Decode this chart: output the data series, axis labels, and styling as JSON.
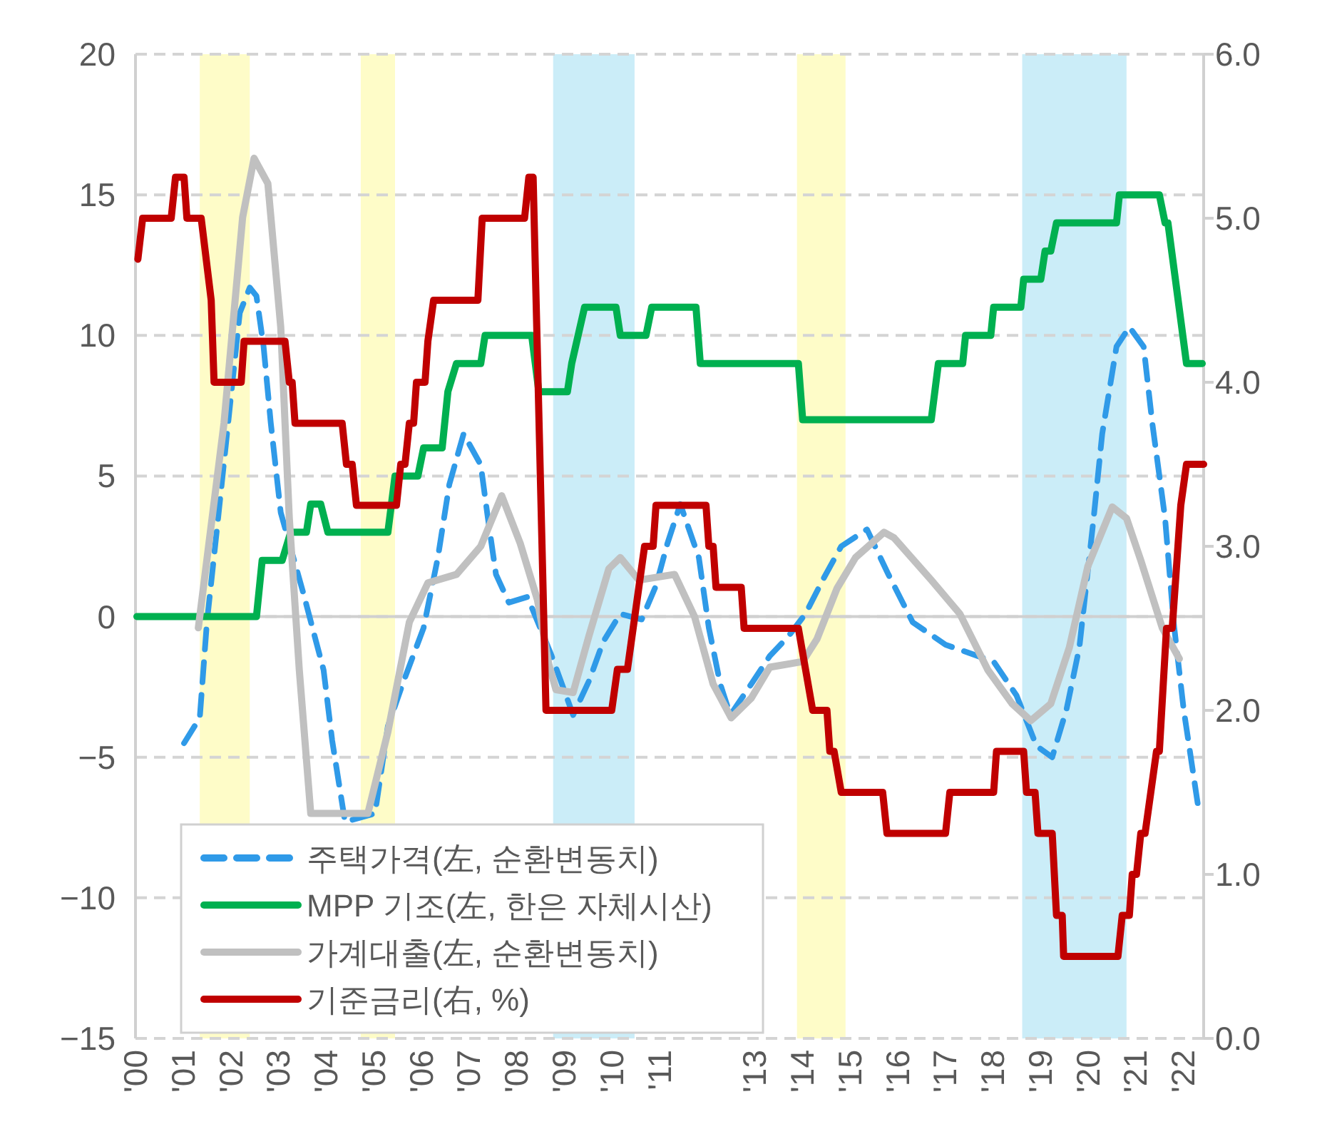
{
  "chart_data": {
    "type": "line",
    "xlim": [
      2000,
      2022.43
    ],
    "xticks": [
      {
        "value": 2000,
        "label": "'00"
      },
      {
        "value": 2001,
        "label": "'01"
      },
      {
        "value": 2002,
        "label": "'02"
      },
      {
        "value": 2003,
        "label": "'03"
      },
      {
        "value": 2004,
        "label": "'04"
      },
      {
        "value": 2005,
        "label": "'05"
      },
      {
        "value": 2006,
        "label": "'06"
      },
      {
        "value": 2007,
        "label": "'07"
      },
      {
        "value": 2008,
        "label": "'08"
      },
      {
        "value": 2009,
        "label": "'09"
      },
      {
        "value": 2010,
        "label": "'10"
      },
      {
        "value": 2011,
        "label": "'11"
      },
      {
        "value": 2013,
        "label": "'13"
      },
      {
        "value": 2014,
        "label": "'14"
      },
      {
        "value": 2015,
        "label": "'15"
      },
      {
        "value": 2016,
        "label": "'16"
      },
      {
        "value": 2017,
        "label": "'17"
      },
      {
        "value": 2018,
        "label": "'18"
      },
      {
        "value": 2019,
        "label": "'19"
      },
      {
        "value": 2020,
        "label": "'20"
      },
      {
        "value": 2021,
        "label": "'21"
      },
      {
        "value": 2022,
        "label": "'22"
      }
    ],
    "ylim": [
      -15,
      20
    ],
    "yticks": [
      {
        "value": -15,
        "label": "−15"
      },
      {
        "value": -10,
        "label": "−10"
      },
      {
        "value": -5,
        "label": "−5"
      },
      0,
      5,
      10,
      15,
      20
    ],
    "y2lim": [
      0,
      6
    ],
    "y2ticks": [
      {
        "value": 0,
        "label": "0.0"
      },
      {
        "value": 1,
        "label": "1.0"
      },
      {
        "value": 2,
        "label": "2.0"
      },
      {
        "value": 3,
        "label": "3.0"
      },
      {
        "value": 4,
        "label": "4.0"
      },
      {
        "value": 5,
        "label": "5.0"
      },
      {
        "value": 6,
        "label": "6.0"
      }
    ],
    "grid": "y",
    "legend": "bottom left",
    "bands": [
      {
        "axis": "x",
        "from": 2001.35,
        "to": 2002.4,
        "color": "#fefcc8"
      },
      {
        "axis": "x",
        "from": 2004.73,
        "to": 2005.45,
        "color": "#fefcc8"
      },
      {
        "axis": "x",
        "from": 2008.77,
        "to": 2010.48,
        "color": "#cbedf8"
      },
      {
        "axis": "x",
        "from": 2013.89,
        "to": 2014.91,
        "color": "#fefcc8"
      },
      {
        "axis": "x",
        "from": 2018.62,
        "to": 2020.81,
        "color": "#cbedf8"
      }
    ],
    "series": [
      {
        "name": "주택가격(左, 순환변동치)",
        "color": "#2f9ae8",
        "line_style": "dashed",
        "x": [
          2001.02,
          2001.35,
          2001.5,
          2001.71,
          2002.19,
          2002.4,
          2002.54,
          2002.69,
          2002.84,
          2003.05,
          2003.53,
          2003.95,
          2004.13,
          2004.4,
          2005.03,
          2005.3,
          2005.63,
          2006.05,
          2006.35,
          2006.59,
          2006.89,
          2007.25,
          2007.4,
          2007.57,
          2007.84,
          2008.23,
          2008.62,
          2008.74,
          2009.19,
          2009.52,
          2009.82,
          2010.18,
          2010.63,
          2010.93,
          2011.17,
          2011.44,
          2011.83,
          2012.04,
          2012.28,
          2012.49,
          2012.93,
          2013.32,
          2013.71,
          2014.07,
          2014.43,
          2014.82,
          2015.36,
          2015.81,
          2016.32,
          2017.01,
          2018.02,
          2018.5,
          2018.92,
          2019.25,
          2019.55,
          2019.82,
          2020.12,
          2020.3,
          2020.6,
          2020.87,
          2021.17,
          2021.35,
          2021.62,
          2021.8,
          2022.01,
          2022.31
        ],
        "values": [
          -4.5,
          -3.6,
          -0.2,
          3.1,
          10.8,
          11.7,
          11.4,
          9.6,
          6.9,
          3.7,
          0.8,
          -1.9,
          -4.4,
          -7.3,
          -7.0,
          -3.9,
          -2.3,
          -0.4,
          2.1,
          4.7,
          6.5,
          5.4,
          3.5,
          1.5,
          0.5,
          0.7,
          -0.9,
          -1.4,
          -3.5,
          -2.3,
          -0.9,
          0.1,
          -0.1,
          1.1,
          2.6,
          4.0,
          2.1,
          -0.4,
          -2.4,
          -3.5,
          -2.4,
          -1.4,
          -0.7,
          0.1,
          1.3,
          2.5,
          3.1,
          1.5,
          -0.2,
          -1.0,
          -1.6,
          -2.8,
          -4.6,
          -5.0,
          -3.3,
          -1.1,
          3.5,
          6.5,
          9.6,
          10.3,
          9.6,
          6.9,
          3.5,
          -0.2,
          -3.3,
          -6.7
        ]
      },
      {
        "name": "MPP 기조(左, 한은 자체시산)",
        "color": "#00b050",
        "line_style": "solid",
        "x": [
          2000.03,
          2002.54,
          2002.66,
          2003.08,
          2003.26,
          2003.59,
          2003.68,
          2003.89,
          2004.04,
          2005.3,
          2005.45,
          2005.93,
          2006.05,
          2006.44,
          2006.56,
          2006.74,
          2007.25,
          2007.34,
          2008.32,
          2008.47,
          2009.07,
          2009.16,
          2009.43,
          2010.09,
          2010.18,
          2010.72,
          2010.84,
          2011.77,
          2011.86,
          2013.92,
          2014.01,
          2016.71,
          2016.86,
          2017.37,
          2017.43,
          2017.96,
          2018.02,
          2018.59,
          2018.65,
          2019.01,
          2019.1,
          2019.22,
          2019.34,
          2020.6,
          2020.66,
          2021.5,
          2021.62,
          2021.68,
          2022.07,
          2022.4
        ],
        "values": [
          0,
          0,
          2,
          2,
          3,
          3,
          4,
          4,
          3,
          3,
          5,
          5,
          6,
          6,
          8,
          9,
          9,
          10,
          10,
          8,
          8,
          9,
          11,
          11,
          10,
          10,
          11,
          11,
          9,
          9,
          7,
          7,
          9,
          9,
          10,
          10,
          11,
          11,
          12,
          12,
          13,
          13,
          14,
          14,
          15,
          15,
          14,
          14,
          9,
          9
        ]
      },
      {
        "name": "가계대출(左, 순환변동치)",
        "color": "#c0c0c0",
        "line_style": "solid",
        "x": [
          2001.32,
          2001.86,
          2002.25,
          2002.49,
          2002.78,
          2003.05,
          2003.23,
          2003.44,
          2003.68,
          2004.88,
          2005.3,
          2005.75,
          2006.14,
          2006.74,
          2007.25,
          2007.69,
          2008.08,
          2008.44,
          2008.68,
          2008.83,
          2009.19,
          2009.52,
          2009.94,
          2010.18,
          2010.57,
          2011.32,
          2011.74,
          2012.13,
          2012.51,
          2012.93,
          2013.32,
          2014.01,
          2014.31,
          2014.73,
          2015.12,
          2015.72,
          2015.93,
          2016.71,
          2017.31,
          2017.9,
          2018.41,
          2018.8,
          2019.22,
          2019.61,
          2020.0,
          2020.51,
          2020.81,
          2021.11,
          2021.56,
          2021.92
        ],
        "values": [
          -0.4,
          6.9,
          14.2,
          16.3,
          15.4,
          10.3,
          3.5,
          -1.9,
          -7.0,
          -7.0,
          -4.1,
          -0.2,
          1.2,
          1.5,
          2.5,
          4.3,
          2.6,
          0.6,
          -1.7,
          -2.6,
          -2.7,
          -0.7,
          1.7,
          2.1,
          1.3,
          1.5,
          0.0,
          -2.4,
          -3.6,
          -2.9,
          -1.8,
          -1.6,
          -0.8,
          1.0,
          2.1,
          3.0,
          2.8,
          1.3,
          0.1,
          -1.9,
          -3.1,
          -3.7,
          -3.1,
          -1.1,
          1.8,
          3.9,
          3.5,
          2.0,
          -0.4,
          -1.5
        ]
      },
      {
        "name": "기준금리(右, %)",
        "color": "#c00000",
        "line_style": "solid",
        "axis": "y2",
        "x": [
          2000.05,
          2000.15,
          2000.75,
          2000.84,
          2001.02,
          2001.08,
          2001.38,
          2001.59,
          2001.65,
          2002.22,
          2002.28,
          2003.14,
          2003.23,
          2003.29,
          2003.35,
          2004.34,
          2004.43,
          2004.55,
          2004.64,
          2005.48,
          2005.57,
          2005.66,
          2005.75,
          2005.84,
          2005.9,
          2006.08,
          2006.14,
          2006.26,
          2007.19,
          2007.28,
          2008.17,
          2008.26,
          2008.35,
          2008.62,
          2010.0,
          2010.12,
          2010.33,
          2010.45,
          2010.57,
          2010.69,
          2010.87,
          2010.93,
          2011.98,
          2012.04,
          2012.13,
          2012.19,
          2012.72,
          2012.78,
          2013.92,
          2014.07,
          2014.22,
          2014.52,
          2014.58,
          2014.67,
          2014.82,
          2015.69,
          2015.78,
          2017.01,
          2017.1,
          2018.02,
          2018.08,
          2018.65,
          2018.71,
          2018.89,
          2018.95,
          2019.25,
          2019.34,
          2019.46,
          2019.49,
          2020.63,
          2020.72,
          2020.87,
          2020.93,
          2021.02,
          2021.11,
          2021.2,
          2021.44,
          2021.5,
          2021.65,
          2021.77,
          2021.89,
          2021.95,
          2022.07,
          2022.43
        ],
        "values": [
          4.75,
          5.0,
          5.0,
          5.25,
          5.25,
          5.0,
          5.0,
          4.5,
          4.0,
          4.0,
          4.25,
          4.25,
          4.0,
          4.0,
          3.75,
          3.75,
          3.5,
          3.5,
          3.25,
          3.25,
          3.5,
          3.5,
          3.75,
          3.75,
          4.0,
          4.0,
          4.25,
          4.5,
          4.5,
          5.0,
          5.0,
          5.25,
          5.25,
          2.0,
          2.0,
          2.25,
          2.25,
          2.5,
          2.75,
          3.0,
          3.0,
          3.25,
          3.25,
          3.0,
          3.0,
          2.75,
          2.75,
          2.5,
          2.5,
          2.25,
          2.0,
          2.0,
          1.75,
          1.75,
          1.5,
          1.5,
          1.25,
          1.25,
          1.5,
          1.5,
          1.75,
          1.75,
          1.5,
          1.5,
          1.25,
          1.25,
          0.75,
          0.75,
          0.5,
          0.5,
          0.75,
          0.75,
          1.0,
          1.0,
          1.25,
          1.25,
          1.75,
          1.75,
          2.5,
          2.5,
          3.0,
          3.25,
          3.5,
          3.5
        ]
      }
    ]
  }
}
